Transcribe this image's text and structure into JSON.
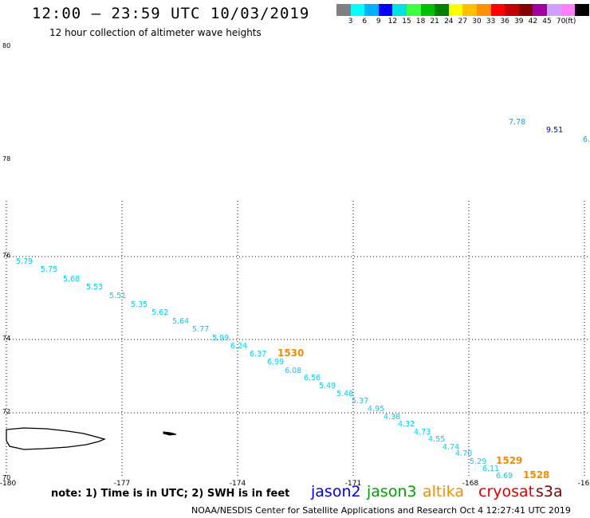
{
  "header": {
    "title": "12:00 — 23:59 UTC 10/03/2019",
    "subtitle": "12 hour collection of altimeter wave heights"
  },
  "legend": {
    "colors": [
      "#808080",
      "#00ffff",
      "#00b0ff",
      "#0000ff",
      "#00e0e0",
      "#40ff40",
      "#00c000",
      "#008000",
      "#ffff00",
      "#ffc000",
      "#ff9000",
      "#ff0000",
      "#c00000",
      "#800000",
      "#a000a0",
      "#d0a0ff",
      "#ff80ff",
      "#000000"
    ],
    "labels": [
      "3",
      "6",
      "9",
      "12",
      "15",
      "18",
      "21",
      "24",
      "27",
      "30",
      "33",
      "36",
      "39",
      "42",
      "45",
      "70"
    ],
    "unit": "(ft)"
  },
  "map": {
    "lat_labels": [
      "80",
      "78",
      "76",
      "74",
      "72",
      "70"
    ],
    "lon_labels": [
      "-180",
      "-177",
      "-174",
      "-171",
      "-168",
      "-16"
    ],
    "track_values": [
      "5.79",
      "5.75",
      "5.68",
      "5.53",
      "5.51",
      "5.35",
      "5.62",
      "5.64",
      "5.77",
      "5.99",
      "6.24",
      "6.37",
      "6.99",
      "6.08",
      "6.56",
      "5.49",
      "5.48",
      "5.37",
      "4.95",
      "4.38",
      "4.32",
      "4.73",
      "4.55",
      "4.74",
      "4.70",
      "5.29",
      "6.11",
      "6.69"
    ],
    "upper_values": [
      "7.78",
      "9.51",
      "6."
    ],
    "time_labels": [
      "1530",
      "1529",
      "1528"
    ],
    "colors": {
      "cyan": "#00d0f0",
      "light_blue": "#00a8f0",
      "blue": "#0000c0",
      "orange": "#f08c00"
    }
  },
  "footer": {
    "note": "note:  1) Time is in UTC; 2) SWH is in feet",
    "satellites": [
      {
        "name": "jason2",
        "color": "#0000e0"
      },
      {
        "name": "jason3",
        "color": "#00a000"
      },
      {
        "name": "altika",
        "color": "#f09000"
      },
      {
        "name": "cryosat",
        "color": "#e00000"
      },
      {
        "name": "s3a",
        "color": "#800000"
      }
    ],
    "credit": "NOAA/NESDIS Center for Satellite Applications and Research     Oct  4 12:27:41 UTC 2019"
  }
}
